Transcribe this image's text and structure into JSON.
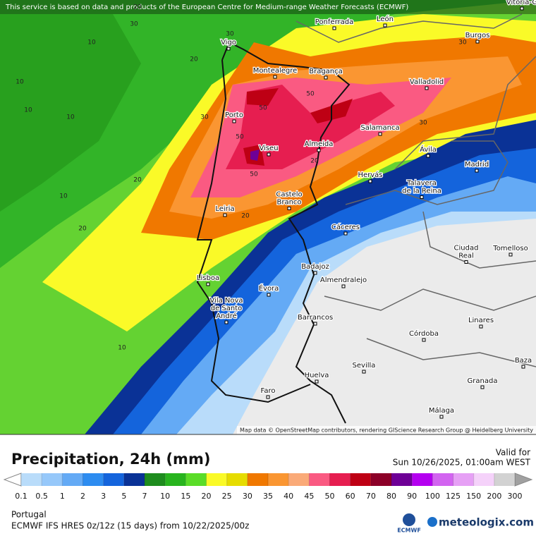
{
  "map": {
    "notice": "This service is based on data and products of the European Centre for Medium-range Weather Forecasts (ECMWF)",
    "attribution": "Map data © OpenStreetMap contributors, rendering GIScience Research Group @ Heidelberg University",
    "places": [
      [
        "Vitoria-G"
      ],
      [
        "Ponferrada"
      ],
      [
        "León"
      ],
      [
        "Vigo"
      ],
      [
        "Burgos"
      ],
      [
        "Montealegre"
      ],
      [
        "Bragança"
      ],
      [
        "Valladolid"
      ],
      [
        "Porto"
      ],
      [
        "Salamanca"
      ],
      [
        "Viseu"
      ],
      [
        "Almeida"
      ],
      [
        "Ávila"
      ],
      [
        "Madrid"
      ],
      [
        "Hervás"
      ],
      [
        "Talavera",
        "de la Reina"
      ],
      [
        "Castelo",
        "Branco"
      ],
      [
        "Leiria"
      ],
      [
        "Cáceres"
      ],
      [
        "Ciudad",
        "Real"
      ],
      [
        "Tomelloso"
      ],
      [
        "Badajoz"
      ],
      [
        "Almendralejo"
      ],
      [
        "Lisboa"
      ],
      [
        "Évora"
      ],
      [
        "Vila Nova",
        "de Santo",
        "André"
      ],
      [
        "Barrancos"
      ],
      [
        "Linares"
      ],
      [
        "Córdoba"
      ],
      [
        "Baza"
      ],
      [
        "Sevilla"
      ],
      [
        "Granada"
      ],
      [
        "Huelva"
      ],
      [
        "Faro"
      ],
      [
        "Málaga"
      ]
    ],
    "contour_labels": [
      10,
      10,
      10,
      10,
      20,
      30,
      20,
      30,
      50,
      50,
      50,
      50,
      30,
      30,
      20,
      20,
      20,
      20,
      10,
      10,
      30
    ]
  },
  "footer": {
    "title": "Precipitation, 24h (mm)",
    "valid_label": "Valid for",
    "valid_time": "Sun 10/26/2025, 01:00am WEST",
    "region": "Portugal",
    "model": "ECMWF IFS HRES 0z/12z (15 days) from  10/22/2025/00z",
    "logo_left": "ECMWF",
    "logo_right": "meteologix.com"
  },
  "scale": {
    "ticks": [
      0.1,
      0.5,
      1,
      2,
      3,
      5,
      7,
      10,
      15,
      20,
      25,
      30,
      35,
      40,
      45,
      50,
      60,
      70,
      80,
      90,
      100,
      125,
      150,
      200,
      300
    ],
    "colors": [
      "#b9dcfa",
      "#96c8fa",
      "#64aaf5",
      "#2d8cf0",
      "#1464dc",
      "#0a3296",
      "#1e8c1e",
      "#28b41e",
      "#5adc28",
      "#fafa28",
      "#e6dc00",
      "#f07800",
      "#fa9632",
      "#faaa78",
      "#fa5a82",
      "#e61e50",
      "#be0014",
      "#8c0028",
      "#6e0096",
      "#b400f0",
      "#d264f0",
      "#e6a0f5",
      "#f5d2fa",
      "#d2d2d2"
    ],
    "low_color": "#ffffff",
    "high_color": "#a0a0a0"
  }
}
